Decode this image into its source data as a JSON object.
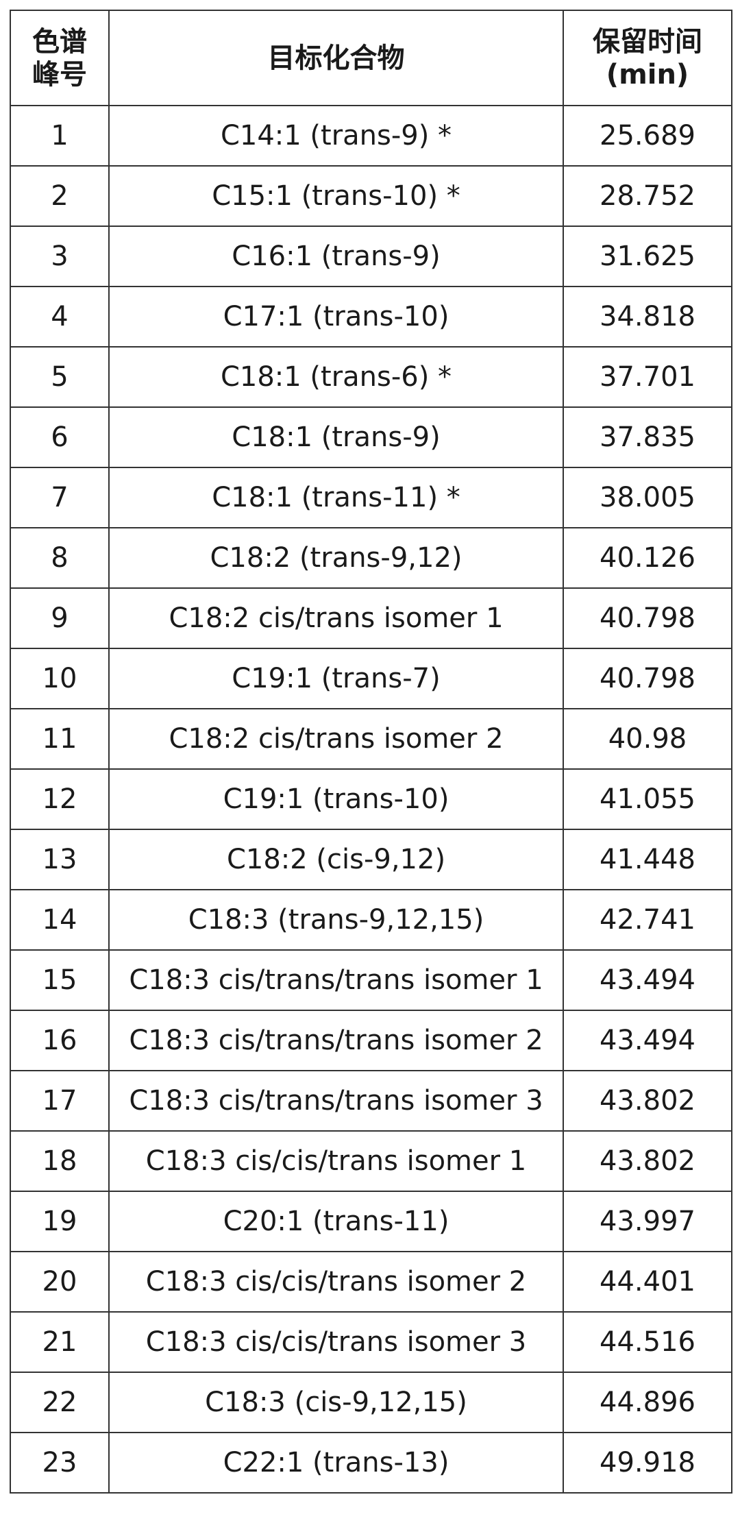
{
  "table": {
    "header": [
      [
        "色谱",
        "峰号"
      ],
      [
        "目标化合物"
      ],
      [
        "保留时间",
        "(min)"
      ]
    ],
    "rows": [
      [
        "1",
        "C14:1 (trans-9) *",
        "25.689"
      ],
      [
        "2",
        "C15:1 (trans-10) *",
        "28.752"
      ],
      [
        "3",
        "C16:1 (trans-9)",
        "31.625"
      ],
      [
        "4",
        "C17:1 (trans-10)",
        "34.818"
      ],
      [
        "5",
        "C18:1 (trans-6) *",
        "37.701"
      ],
      [
        "6",
        "C18:1 (trans-9)",
        "37.835"
      ],
      [
        "7",
        "C18:1 (trans-11) *",
        "38.005"
      ],
      [
        "8",
        "C18:2 (trans-9,12)",
        "40.126"
      ],
      [
        "9",
        "C18:2 cis/trans isomer 1",
        "40.798"
      ],
      [
        "10",
        "C19:1 (trans-7)",
        "40.798"
      ],
      [
        "11",
        "C18:2 cis/trans isomer 2",
        "40.98"
      ],
      [
        "12",
        "C19:1 (trans-10)",
        "41.055"
      ],
      [
        "13",
        "C18:2 (cis-9,12)",
        "41.448"
      ],
      [
        "14",
        "C18:3 (trans-9,12,15)",
        "42.741"
      ],
      [
        "15",
        "C18:3 cis/trans/trans isomer 1",
        "43.494"
      ],
      [
        "16",
        "C18:3 cis/trans/trans isomer 2",
        "43.494"
      ],
      [
        "17",
        "C18:3 cis/trans/trans isomer 3",
        "43.802"
      ],
      [
        "18",
        "C18:3 cis/cis/trans isomer 1",
        "43.802"
      ],
      [
        "19",
        "C20:1 (trans-11)",
        "43.997"
      ],
      [
        "20",
        "C18:3 cis/cis/trans isomer 2",
        "44.401"
      ],
      [
        "21",
        "C18:3 cis/cis/trans isomer 3",
        "44.516"
      ],
      [
        "22",
        "C18:3 (cis-9,12,15)",
        "44.896"
      ],
      [
        "23",
        "C22:1 (trans-13)",
        "49.918"
      ]
    ]
  }
}
